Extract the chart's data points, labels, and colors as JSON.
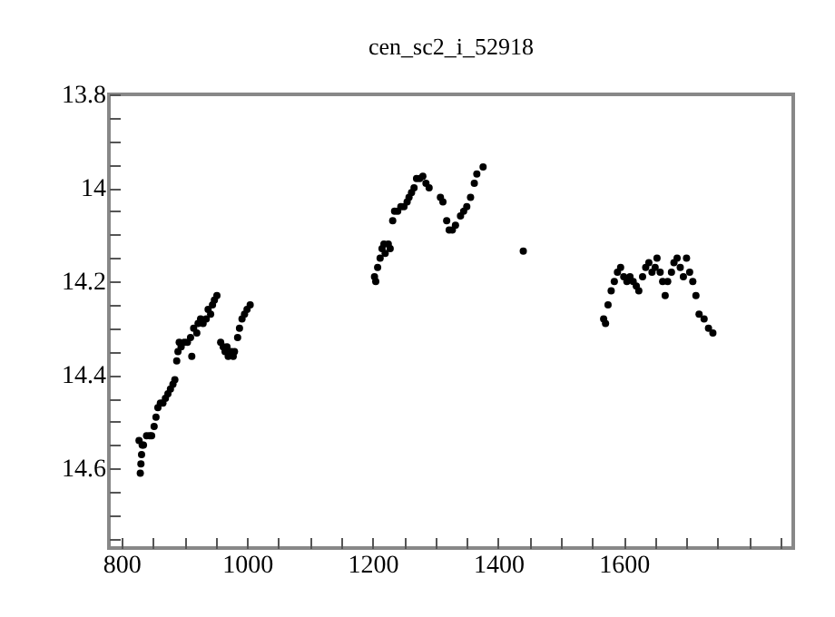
{
  "chart_data": {
    "type": "scatter",
    "title": "cen_sc2_i_52918",
    "x": [
      828,
      830,
      831,
      832,
      833,
      835,
      840,
      845,
      848,
      852,
      855,
      858,
      862,
      866,
      870,
      874,
      878,
      882,
      885,
      888,
      890,
      892,
      895,
      900,
      905,
      910,
      912,
      915,
      920,
      922,
      926,
      930,
      935,
      938,
      942,
      945,
      948,
      952,
      958,
      962,
      965,
      968,
      970,
      975,
      978,
      980,
      985,
      988,
      992,
      996,
      1000,
      1005,
      1203,
      1205,
      1208,
      1212,
      1215,
      1218,
      1220,
      1225,
      1228,
      1232,
      1235,
      1240,
      1245,
      1250,
      1255,
      1258,
      1262,
      1266,
      1270,
      1275,
      1280,
      1285,
      1290,
      1308,
      1312,
      1318,
      1322,
      1327,
      1332,
      1340,
      1345,
      1350,
      1356,
      1362,
      1366,
      1376,
      1440,
      1568,
      1571,
      1575,
      1580,
      1585,
      1590,
      1595,
      1600,
      1605,
      1610,
      1615,
      1620,
      1624,
      1630,
      1635,
      1640,
      1645,
      1650,
      1653,
      1658,
      1662,
      1666,
      1670,
      1676,
      1680,
      1685,
      1690,
      1695,
      1700,
      1705,
      1710,
      1715,
      1720,
      1728,
      1735,
      1742
    ],
    "values": [
      14.54,
      14.61,
      14.59,
      14.57,
      14.55,
      14.55,
      14.53,
      14.53,
      14.53,
      14.51,
      14.49,
      14.47,
      14.46,
      14.46,
      14.45,
      14.44,
      14.43,
      14.42,
      14.41,
      14.37,
      14.35,
      14.33,
      14.34,
      14.33,
      14.33,
      14.32,
      14.36,
      14.3,
      14.31,
      14.29,
      14.28,
      14.29,
      14.28,
      14.26,
      14.27,
      14.25,
      14.24,
      14.23,
      14.33,
      14.34,
      14.35,
      14.34,
      14.36,
      14.35,
      14.36,
      14.35,
      14.32,
      14.3,
      14.28,
      14.27,
      14.26,
      14.25,
      14.19,
      14.2,
      14.17,
      14.15,
      14.13,
      14.12,
      14.14,
      14.12,
      14.13,
      14.07,
      14.05,
      14.05,
      14.04,
      14.04,
      14.03,
      14.02,
      14.01,
      14.0,
      13.98,
      13.98,
      13.975,
      13.99,
      14.0,
      14.02,
      14.03,
      14.07,
      14.09,
      14.09,
      14.08,
      14.06,
      14.05,
      14.04,
      14.02,
      13.99,
      13.97,
      13.955,
      14.135,
      14.28,
      14.29,
      14.25,
      14.22,
      14.2,
      14.18,
      14.17,
      14.19,
      14.2,
      14.19,
      14.2,
      14.21,
      14.22,
      14.19,
      14.17,
      14.16,
      14.18,
      14.17,
      14.15,
      14.18,
      14.2,
      14.23,
      14.2,
      14.18,
      14.16,
      14.15,
      14.17,
      14.19,
      14.15,
      14.18,
      14.2,
      14.23,
      14.27,
      14.28,
      14.3,
      14.31
    ],
    "color": "#000000",
    "marker": "circle",
    "xlim": [
      780,
      1870
    ],
    "ylim": [
      14.77,
      13.8
    ],
    "xticks": [
      800,
      {
        "value": 850,
        "label": null
      },
      {
        "value": 900,
        "label": null
      },
      {
        "value": 950,
        "label": null
      },
      1000,
      {
        "value": 1050,
        "label": null
      },
      {
        "value": 1100,
        "label": null
      },
      {
        "value": 1150,
        "label": null
      },
      1200,
      {
        "value": 1250,
        "label": null
      },
      {
        "value": 1300,
        "label": null
      },
      {
        "value": 1350,
        "label": null
      },
      1400,
      {
        "value": 1450,
        "label": null
      },
      {
        "value": 1500,
        "label": null
      },
      {
        "value": 1550,
        "label": null
      },
      1600,
      {
        "value": 1650,
        "label": null
      },
      {
        "value": 1700,
        "label": null
      },
      {
        "value": 1750,
        "label": null
      },
      {
        "value": 1800,
        "label": null
      },
      {
        "value": 1850,
        "label": null
      }
    ],
    "yticks": [
      13.8,
      {
        "value": 13.85,
        "label": null
      },
      {
        "value": 13.9,
        "label": null
      },
      {
        "value": 13.95,
        "label": null
      },
      14,
      {
        "value": 14.05,
        "label": null
      },
      {
        "value": 14.1,
        "label": null
      },
      {
        "value": 14.15,
        "label": null
      },
      14.2,
      {
        "value": 14.25,
        "label": null
      },
      {
        "value": 14.3,
        "label": null
      },
      {
        "value": 14.35,
        "label": null
      },
      14.4,
      {
        "value": 14.45,
        "label": null
      },
      {
        "value": 14.5,
        "label": null
      },
      {
        "value": 14.55,
        "label": null
      },
      14.6,
      {
        "value": 14.65,
        "label": null
      },
      {
        "value": 14.7,
        "label": null
      },
      {
        "value": 14.75,
        "label": null
      }
    ]
  }
}
